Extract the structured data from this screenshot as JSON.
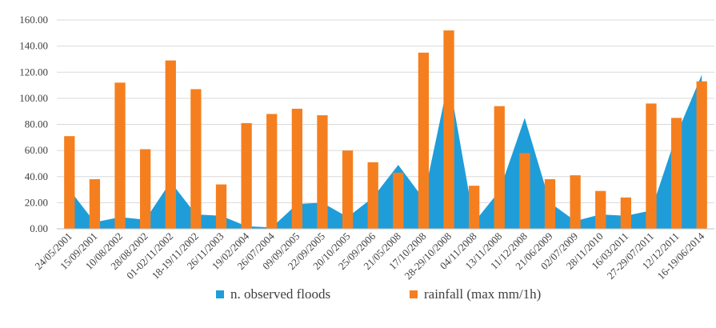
{
  "chart_data": {
    "type": "area+bar",
    "categories": [
      "24/05/2001",
      "15/09/2001",
      "10/08/2002",
      "28/08/2002",
      "01-02/11/2002",
      "18-19/11/2002",
      "26/11/2003",
      "19/02/2004",
      "26/07/2004",
      "09/09/2005",
      "22/09/2005",
      "20/10/2005",
      "25/09/2006",
      "21/05/2008",
      "17/10/2008",
      "28-29/10/2008",
      "04/11/2008",
      "13/11/2008",
      "11/12/2008",
      "21/06/2009",
      "02/07/2009",
      "28/11/2010",
      "16/03/2011",
      "27-29/07/2011",
      "12/12/2011",
      "16-19/06/2014"
    ],
    "series": [
      {
        "name": "n. observed floods",
        "type": "area",
        "color": "#1f9dd9",
        "values": [
          30,
          5,
          9,
          7,
          36,
          11,
          10,
          2,
          1,
          19,
          20,
          9,
          24,
          49,
          23,
          115,
          5,
          29,
          85,
          20,
          6,
          11,
          10,
          14,
          72,
          118
        ]
      },
      {
        "name": "rainfall (max mm/1h)",
        "type": "bar",
        "color": "#f57f1f",
        "values": [
          71,
          38,
          112,
          61,
          129,
          107,
          34,
          81,
          88,
          92,
          87,
          60,
          51,
          43,
          135,
          152,
          33,
          94,
          58,
          38,
          41,
          29,
          24,
          96,
          85,
          113
        ]
      }
    ],
    "ylim": [
      0,
      160
    ],
    "yticks": [
      "0.00",
      "20.00",
      "40.00",
      "60.00",
      "80.00",
      "100.00",
      "120.00",
      "140.00",
      "160.00"
    ],
    "grid": "horizontal",
    "legend_position": "bottom"
  }
}
